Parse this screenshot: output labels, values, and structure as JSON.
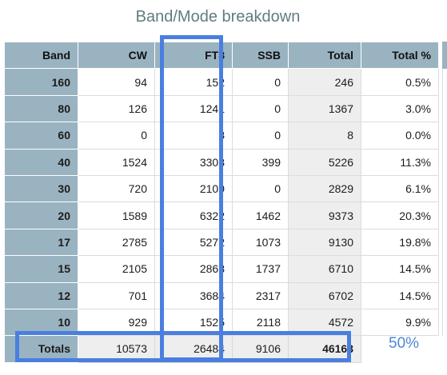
{
  "title": "Band/Mode breakdown",
  "headers": [
    "Band",
    "CW",
    "FT8",
    "SSB",
    "Total",
    "Total %"
  ],
  "rows": [
    {
      "band": "160",
      "cw": "94",
      "ft8": "152",
      "ssb": "0",
      "total": "246",
      "pct": "0.5%"
    },
    {
      "band": "80",
      "cw": "126",
      "ft8": "1241",
      "ssb": "0",
      "total": "1367",
      "pct": "3.0%"
    },
    {
      "band": "60",
      "cw": "0",
      "ft8": "8",
      "ssb": "0",
      "total": "8",
      "pct": "0.0%"
    },
    {
      "band": "40",
      "cw": "1524",
      "ft8": "3303",
      "ssb": "399",
      "total": "5226",
      "pct": "11.3%"
    },
    {
      "band": "30",
      "cw": "720",
      "ft8": "2109",
      "ssb": "0",
      "total": "2829",
      "pct": "6.1%"
    },
    {
      "band": "20",
      "cw": "1589",
      "ft8": "6322",
      "ssb": "1462",
      "total": "9373",
      "pct": "20.3%"
    },
    {
      "band": "17",
      "cw": "2785",
      "ft8": "5272",
      "ssb": "1073",
      "total": "9130",
      "pct": "19.8%"
    },
    {
      "band": "15",
      "cw": "2105",
      "ft8": "2868",
      "ssb": "1737",
      "total": "6710",
      "pct": "14.5%"
    },
    {
      "band": "12",
      "cw": "701",
      "ft8": "3684",
      "ssb": "2317",
      "total": "6702",
      "pct": "14.5%"
    },
    {
      "band": "10",
      "cw": "929",
      "ft8": "1525",
      "ssb": "2118",
      "total": "4572",
      "pct": "9.9%"
    }
  ],
  "totals": {
    "label": "Totals",
    "cw": "10573",
    "ft8": "26484",
    "ssb": "9106",
    "total": "46163"
  },
  "annotation": "50%",
  "colors": {
    "header_bg": "#9ab3c1",
    "highlight": "#4a7fe0",
    "total_col_bg": "#eeeeee",
    "title": "#5f7d80"
  }
}
